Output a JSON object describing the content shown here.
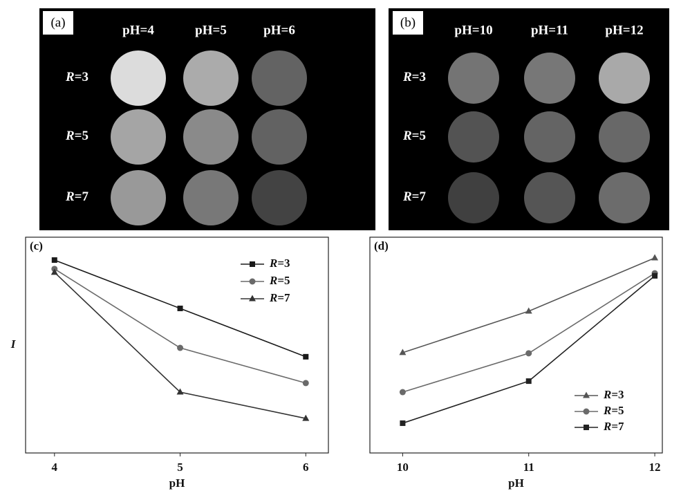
{
  "image_panels": [
    {
      "label": "(a)",
      "columns": [
        "pH=4",
        "pH=5",
        "pH=6"
      ],
      "rows": [
        "R=3",
        "R=5",
        "R=7"
      ]
    },
    {
      "label": "(b)",
      "columns": [
        "pH=10",
        "pH=11",
        "pH=12"
      ],
      "rows": [
        "R=3",
        "R=5",
        "R=7"
      ]
    }
  ],
  "chart_data": [
    {
      "type": "line",
      "label": "(c)",
      "x_label": "pH",
      "y_label": "I",
      "x": [
        4,
        5,
        6
      ],
      "xlim": [
        3.77,
        6.18
      ],
      "xticks": [
        4,
        5,
        6
      ],
      "ylim": [
        0,
        100
      ],
      "legend": "upper right",
      "series": [
        {
          "name": "R=3",
          "color": "#1a1a1a",
          "marker": "square",
          "values": [
            89.4,
            67.0,
            44.6
          ]
        },
        {
          "name": "R=5",
          "color": "#6a6a6a",
          "marker": "circle",
          "values": [
            85.3,
            48.7,
            32.4
          ]
        },
        {
          "name": "R=7",
          "color": "#333333",
          "marker": "triangle",
          "values": [
            83.7,
            28.2,
            16.0
          ]
        }
      ]
    },
    {
      "type": "line",
      "label": "(d)",
      "x_label": "pH",
      "x": [
        10,
        11,
        12
      ],
      "xlim": [
        9.74,
        12.06
      ],
      "xticks": [
        10,
        11,
        12
      ],
      "ylim": [
        0,
        100
      ],
      "legend": "lower right",
      "series": [
        {
          "name": "R=3",
          "color": "#555555",
          "marker": "triangle",
          "values": [
            46.5,
            65.7,
            90.4
          ]
        },
        {
          "name": "R=5",
          "color": "#6a6a6a",
          "marker": "circle",
          "values": [
            28.2,
            46.2,
            83.3
          ]
        },
        {
          "name": "R=7",
          "color": "#222222",
          "marker": "square",
          "values": [
            13.8,
            33.3,
            82.1
          ]
        }
      ]
    }
  ]
}
